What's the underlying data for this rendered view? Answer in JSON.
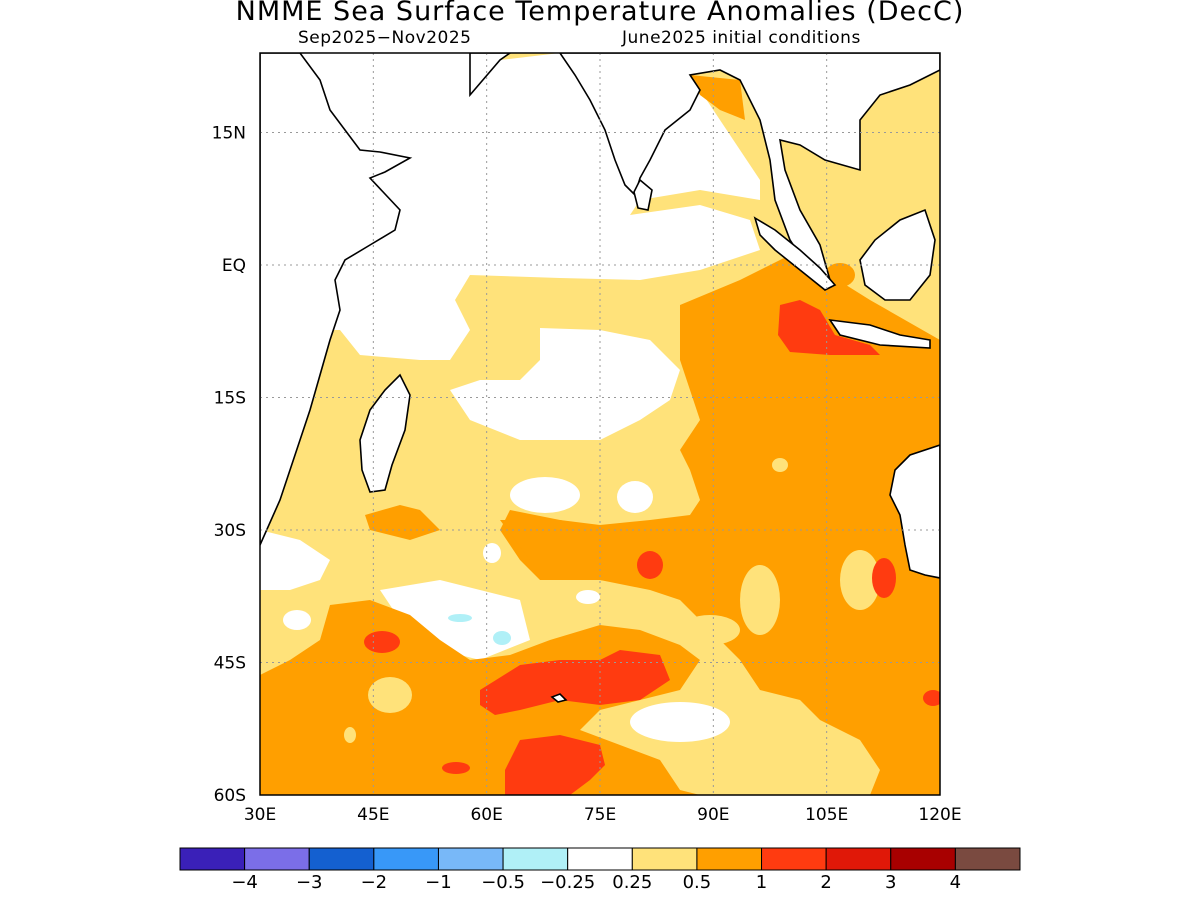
{
  "title": "NMME Sea Surface Temperature Anomalies (DecC)",
  "period": "Sep2025−Nov2025",
  "initial_conditions": "June2025 initial conditions",
  "map": {
    "lon_labels": [
      "30E",
      "45E",
      "60E",
      "75E",
      "90E",
      "105E",
      "120E"
    ],
    "lat_labels": [
      "15N",
      "EQ",
      "15S",
      "30S",
      "45S",
      "60S"
    ],
    "lon_range": [
      30,
      120
    ],
    "lat_range": [
      -60,
      24
    ],
    "grid": "dotted",
    "fill_colors": {
      "0.25-0.5": "#ffe27a",
      "0.5-1": "#ff9f00",
      "1-2": "#ff3b10",
      "-0.5--0.25": "#b0f0f7"
    }
  },
  "colorbar": {
    "colors": [
      "#3a20b8",
      "#7b6ee8",
      "#1460d0",
      "#3898f8",
      "#78b8f8",
      "#b0f0f7",
      "#ffffff",
      "#ffe27a",
      "#ff9f00",
      "#ff3b10",
      "#e01808",
      "#a80000",
      "#7a4a40"
    ],
    "labels": [
      "−4",
      "−3",
      "−2",
      "−1",
      "−0.5",
      "−0.25",
      "0.25",
      "0.5",
      "1",
      "2",
      "3",
      "4"
    ]
  }
}
